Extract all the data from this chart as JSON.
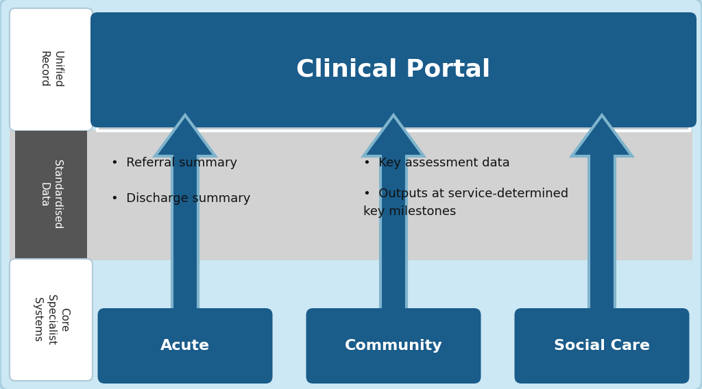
{
  "bg_color": "#cce8f4",
  "clinical_portal_color": "#1a5c8a",
  "clinical_portal_text": "Clinical Portal",
  "std_band_color": "#d0d0d0",
  "std_label_color": "#555555",
  "std_label_text": "Standardised\nData",
  "unified_label_text": "Unified\nRecord",
  "core_label_text": "Core\nSpecialist\nSystems",
  "box_color": "#1a5c8a",
  "arrow_color": "#1a5c8a",
  "arrow_light": "#7fb4cc",
  "boxes": [
    "Acute",
    "Community",
    "Social Care"
  ],
  "bullet_left": [
    "Referral summary",
    "Discharge summary"
  ],
  "bullet_right_1": "Key assessment data",
  "bullet_right_2": "Outputs at service-determined\nkey milestones",
  "chevron_color": "#c8d0d4",
  "chevron_edge": "#ffffff"
}
